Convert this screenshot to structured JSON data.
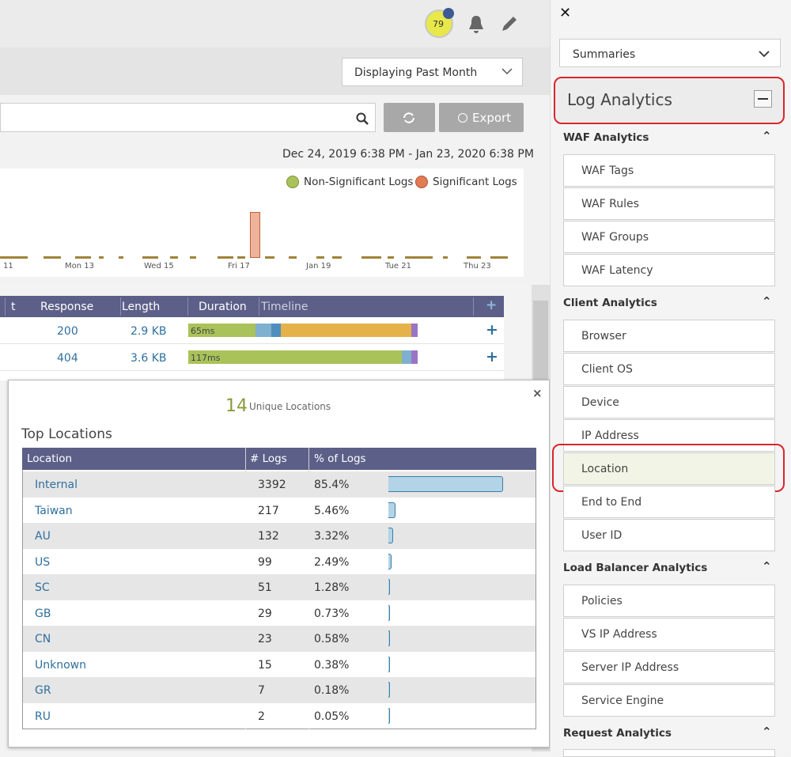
{
  "header": {
    "score": "79"
  },
  "toolbar": {
    "time_range": "Displaying Past Month",
    "export": "Export",
    "date_range": "Dec 24, 2019 6:38 PM - Jan 23, 2020 6:38 PM"
  },
  "chart": {
    "legend": [
      "Non-Significant Logs",
      "Significant Logs"
    ],
    "x_labels": [
      "11",
      "Mon 13",
      "Wed 15",
      "Fri 17",
      "Jan 19",
      "Tue 21",
      "Thu 23"
    ]
  },
  "log_table": {
    "columns": [
      "t",
      "Response",
      "Length",
      "Duration",
      "Timeline"
    ],
    "rows": [
      [
        "200",
        "2.9 KB",
        "65ms"
      ],
      [
        "404",
        "3.6 KB",
        "117ms"
      ]
    ]
  },
  "popup": {
    "count": "14",
    "count_label": "Unique Locations",
    "title": "Top Locations",
    "columns": [
      "Location",
      "# Logs",
      "% of Logs"
    ],
    "rows": [
      {
        "location": "Internal",
        "logs": 3392,
        "percent": "85.4%"
      },
      {
        "location": "Taiwan",
        "logs": 217,
        "percent": "5.46%"
      },
      {
        "location": "AU",
        "logs": 132,
        "percent": "3.32%"
      },
      {
        "location": "US",
        "logs": 99,
        "percent": "2.49%"
      },
      {
        "location": "SC",
        "logs": 51,
        "percent": "1.28%"
      },
      {
        "location": "GB",
        "logs": 29,
        "percent": "0.73%"
      },
      {
        "location": "CN",
        "logs": 23,
        "percent": "0.58%"
      },
      {
        "location": "Unknown",
        "logs": 15,
        "percent": "0.38%"
      },
      {
        "location": "GR",
        "logs": 7,
        "percent": "0.18%"
      },
      {
        "location": "RU",
        "logs": 2,
        "percent": "0.05%"
      }
    ]
  },
  "sidebar": {
    "dropdown": "Summaries",
    "section": "Log Analytics",
    "groups": [
      {
        "title": "WAF Analytics",
        "items": [
          "WAF Tags",
          "WAF Rules",
          "WAF Groups",
          "WAF Latency"
        ]
      },
      {
        "title": "Client Analytics",
        "items": [
          "Browser",
          "Client OS",
          "Device",
          "IP Address",
          "Location",
          "End to End",
          "User ID"
        ]
      },
      {
        "title": "Load Balancer Analytics",
        "items": [
          "Policies",
          "VS IP Address",
          "Server IP Address",
          "Service Engine"
        ]
      },
      {
        "title": "Request Analytics",
        "items": []
      }
    ],
    "selected": "Location"
  }
}
